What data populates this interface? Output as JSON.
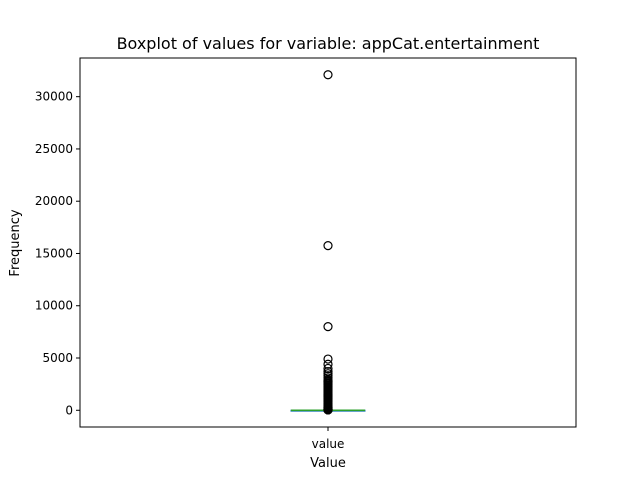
{
  "chart_data": {
    "type": "box",
    "title": "Boxplot of values for variable: appCat.entertainment",
    "xlabel": "Value",
    "ylabel": "Frequency",
    "categories": [
      "value"
    ],
    "ylim": [
      -1600,
      33700
    ],
    "yticks": [
      0,
      5000,
      10000,
      15000,
      20000,
      25000,
      30000
    ],
    "grid": false,
    "box": {
      "q1": 0,
      "median": 1,
      "q3": 10,
      "whisker_low": 0,
      "whisker_high": 20
    },
    "outliers": [
      32100,
      15750,
      8000,
      4900,
      4400,
      4000,
      3700,
      3500,
      3300,
      3100,
      2900,
      2800,
      2700,
      2600,
      2500,
      2400,
      2300,
      2200,
      2100,
      2000,
      1900,
      1800,
      1700,
      1600,
      1500,
      1400,
      1300,
      1200,
      1100,
      1000,
      900,
      800,
      700,
      600,
      500,
      400,
      300,
      250,
      200,
      150,
      120,
      100,
      80,
      60,
      40,
      30
    ],
    "colors": {
      "median": "#2ca02c",
      "box": "#1f77b4",
      "outlier": "#000000"
    }
  }
}
